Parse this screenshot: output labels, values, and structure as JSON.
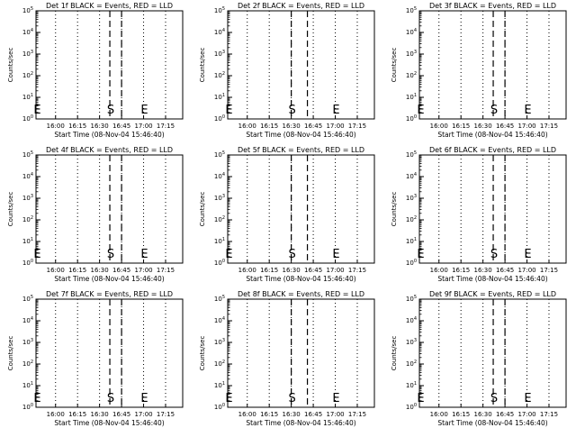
{
  "chart_data": [
    {
      "type": "line",
      "title": "Det 1f BLACK = Events, RED = LLD",
      "xlabel": "Start Time (08-Nov-04 15:46:40)",
      "ylabel": "Counts/sec",
      "log_y": true,
      "ylim": [
        1,
        100000
      ],
      "xlim": [
        "15:46:40",
        "17:26:40"
      ],
      "x_ticks": [
        "16:00",
        "16:15",
        "16:30",
        "16:45",
        "17:00",
        "17:15"
      ],
      "y_tick_exponents": [
        "0",
        "1",
        "2",
        "3",
        "4",
        "5"
      ],
      "dotted_lines_x": [
        "16:00",
        "16:15",
        "16:30",
        "16:45",
        "17:00",
        "17:15"
      ],
      "dashed_lines_x": [
        "16:37",
        "16:45"
      ],
      "markers": [
        {
          "label": "E",
          "x": "15:47"
        },
        {
          "label": "S",
          "x": "16:37"
        },
        {
          "label": "E",
          "x": "17:00"
        }
      ],
      "series": []
    },
    {
      "type": "line",
      "title": "Det 2f BLACK = Events, RED = LLD",
      "xlabel": "Start Time (08-Nov-04 15:46:40)",
      "ylabel": "Counts/sec",
      "log_y": true,
      "ylim": [
        1,
        100000
      ],
      "xlim": [
        "15:46:40",
        "17:26:40"
      ],
      "x_ticks": [
        "16:00",
        "16:15",
        "16:30",
        "16:45",
        "17:00",
        "17:15"
      ],
      "y_tick_exponents": [
        "0",
        "1",
        "2",
        "3",
        "4",
        "5"
      ],
      "dotted_lines_x": [
        "16:00",
        "16:15",
        "16:30",
        "16:45",
        "17:00",
        "17:15"
      ],
      "dashed_lines_x": [
        "16:30",
        "16:41"
      ],
      "markers": [
        {
          "label": "E",
          "x": "15:47"
        },
        {
          "label": "S",
          "x": "16:30"
        },
        {
          "label": "E",
          "x": "17:00"
        }
      ],
      "series": []
    },
    {
      "type": "line",
      "title": "Det 3f BLACK = Events, RED = LLD",
      "xlabel": "Start Time (08-Nov-04 15:46:40)",
      "ylabel": "Counts/sec",
      "log_y": true,
      "ylim": [
        1,
        100000
      ],
      "xlim": [
        "15:46:40",
        "17:26:40"
      ],
      "x_ticks": [
        "16:00",
        "16:15",
        "16:30",
        "16:45",
        "17:00",
        "17:15"
      ],
      "y_tick_exponents": [
        "0",
        "1",
        "2",
        "3",
        "4",
        "5"
      ],
      "dotted_lines_x": [
        "16:00",
        "16:15",
        "16:30",
        "16:45",
        "17:00",
        "17:15"
      ],
      "dashed_lines_x": [
        "16:37",
        "16:45"
      ],
      "markers": [
        {
          "label": "E",
          "x": "15:47"
        },
        {
          "label": "S",
          "x": "16:37"
        },
        {
          "label": "E",
          "x": "17:00"
        }
      ],
      "series": []
    },
    {
      "type": "line",
      "title": "Det 4f BLACK = Events, RED = LLD",
      "xlabel": "Start Time (08-Nov-04 15:46:40)",
      "ylabel": "Counts/sec",
      "log_y": true,
      "ylim": [
        1,
        100000
      ],
      "xlim": [
        "15:46:40",
        "17:26:40"
      ],
      "x_ticks": [
        "16:00",
        "16:15",
        "16:30",
        "16:45",
        "17:00",
        "17:15"
      ],
      "y_tick_exponents": [
        "0",
        "1",
        "2",
        "3",
        "4",
        "5"
      ],
      "dotted_lines_x": [
        "16:00",
        "16:15",
        "16:30",
        "16:45",
        "17:00",
        "17:15"
      ],
      "dashed_lines_x": [
        "16:37",
        "16:45"
      ],
      "markers": [
        {
          "label": "E",
          "x": "15:47"
        },
        {
          "label": "S",
          "x": "16:37"
        },
        {
          "label": "E",
          "x": "17:00"
        }
      ],
      "series": []
    },
    {
      "type": "line",
      "title": "Det 5f BLACK = Events, RED = LLD",
      "xlabel": "Start Time (08-Nov-04 15:46:40)",
      "ylabel": "Counts/sec",
      "log_y": true,
      "ylim": [
        1,
        100000
      ],
      "xlim": [
        "15:46:40",
        "17:26:40"
      ],
      "x_ticks": [
        "16:00",
        "16:15",
        "16:30",
        "16:45",
        "17:00",
        "17:15"
      ],
      "y_tick_exponents": [
        "0",
        "1",
        "2",
        "3",
        "4",
        "5"
      ],
      "dotted_lines_x": [
        "16:00",
        "16:15",
        "16:30",
        "16:45",
        "17:00",
        "17:15"
      ],
      "dashed_lines_x": [
        "16:30",
        "16:41"
      ],
      "markers": [
        {
          "label": "E",
          "x": "15:47"
        },
        {
          "label": "S",
          "x": "16:30"
        },
        {
          "label": "E",
          "x": "17:00"
        }
      ],
      "series": []
    },
    {
      "type": "line",
      "title": "Det 6f BLACK = Events, RED = LLD",
      "xlabel": "Start Time (08-Nov-04 15:46:40)",
      "ylabel": "Counts/sec",
      "log_y": true,
      "ylim": [
        1,
        100000
      ],
      "xlim": [
        "15:46:40",
        "17:26:40"
      ],
      "x_ticks": [
        "16:00",
        "16:15",
        "16:30",
        "16:45",
        "17:00",
        "17:15"
      ],
      "y_tick_exponents": [
        "0",
        "1",
        "2",
        "3",
        "4",
        "5"
      ],
      "dotted_lines_x": [
        "16:00",
        "16:15",
        "16:30",
        "16:45",
        "17:00",
        "17:15"
      ],
      "dashed_lines_x": [
        "16:37",
        "16:45"
      ],
      "markers": [
        {
          "label": "E",
          "x": "15:47"
        },
        {
          "label": "S",
          "x": "16:37"
        },
        {
          "label": "E",
          "x": "17:00"
        }
      ],
      "series": []
    },
    {
      "type": "line",
      "title": "Det 7f BLACK = Events, RED = LLD",
      "xlabel": "Start Time (08-Nov-04 15:46:40)",
      "ylabel": "Counts/sec",
      "log_y": true,
      "ylim": [
        1,
        100000
      ],
      "xlim": [
        "15:46:40",
        "17:26:40"
      ],
      "x_ticks": [
        "16:00",
        "16:15",
        "16:30",
        "16:45",
        "17:00",
        "17:15"
      ],
      "y_tick_exponents": [
        "0",
        "1",
        "2",
        "3",
        "4",
        "5"
      ],
      "dotted_lines_x": [
        "16:00",
        "16:15",
        "16:30",
        "16:45",
        "17:00",
        "17:15"
      ],
      "dashed_lines_x": [
        "16:37",
        "16:45"
      ],
      "markers": [
        {
          "label": "E",
          "x": "15:47"
        },
        {
          "label": "S",
          "x": "16:37"
        },
        {
          "label": "E",
          "x": "17:00"
        }
      ],
      "series": []
    },
    {
      "type": "line",
      "title": "Det 8f BLACK = Events, RED = LLD",
      "xlabel": "Start Time (08-Nov-04 15:46:40)",
      "ylabel": "Counts/sec",
      "log_y": true,
      "ylim": [
        1,
        100000
      ],
      "xlim": [
        "15:46:40",
        "17:26:40"
      ],
      "x_ticks": [
        "16:00",
        "16:15",
        "16:30",
        "16:45",
        "17:00",
        "17:15"
      ],
      "y_tick_exponents": [
        "0",
        "1",
        "2",
        "3",
        "4",
        "5"
      ],
      "dotted_lines_x": [
        "16:00",
        "16:15",
        "16:30",
        "16:45",
        "17:00",
        "17:15"
      ],
      "dashed_lines_x": [
        "16:30",
        "16:41"
      ],
      "markers": [
        {
          "label": "E",
          "x": "15:47"
        },
        {
          "label": "S",
          "x": "16:30"
        },
        {
          "label": "E",
          "x": "17:00"
        }
      ],
      "series": []
    },
    {
      "type": "line",
      "title": "Det 9f BLACK = Events, RED = LLD",
      "xlabel": "Start Time (08-Nov-04 15:46:40)",
      "ylabel": "Counts/sec",
      "log_y": true,
      "ylim": [
        1,
        100000
      ],
      "xlim": [
        "15:46:40",
        "17:26:40"
      ],
      "x_ticks": [
        "16:00",
        "16:15",
        "16:30",
        "16:45",
        "17:00",
        "17:15"
      ],
      "y_tick_exponents": [
        "0",
        "1",
        "2",
        "3",
        "4",
        "5"
      ],
      "dotted_lines_x": [
        "16:00",
        "16:15",
        "16:30",
        "16:45",
        "17:00",
        "17:15"
      ],
      "dashed_lines_x": [
        "16:37",
        "16:45"
      ],
      "markers": [
        {
          "label": "E",
          "x": "15:47"
        },
        {
          "label": "S",
          "x": "16:37"
        },
        {
          "label": "E",
          "x": "17:00"
        }
      ],
      "series": []
    }
  ]
}
